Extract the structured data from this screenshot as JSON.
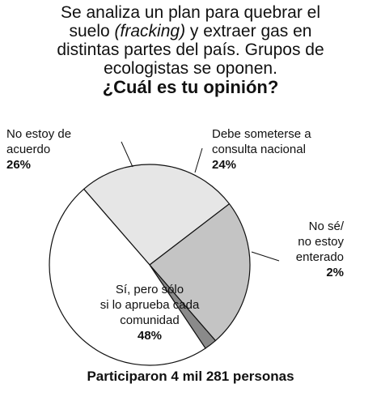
{
  "question": {
    "line1": "Se analiza un plan para quebrar el",
    "line2_before": "suelo ",
    "line2_italic": "(fracking)",
    "line2_after": " y extraer gas en",
    "line3": "distintas partes del país. Grupos de",
    "line4": "ecologistas se oponen.",
    "line5": "¿Cuál es tu opinión?"
  },
  "chart_data": {
    "type": "pie",
    "title": "¿Cuál es tu opinión?",
    "slices": [
      {
        "lines": [
          "No estoy de",
          "acuerdo"
        ],
        "pct_label": "26%",
        "value": 26,
        "color": "#e6e6e6"
      },
      {
        "lines": [
          "Debe someterse a",
          "consulta nacional"
        ],
        "pct_label": "24%",
        "value": 24,
        "color": "#c4c4c4"
      },
      {
        "lines": [
          "No sé/",
          "no estoy",
          "enterado"
        ],
        "pct_label": "2%",
        "value": 2,
        "color": "#8a8a8a"
      },
      {
        "lines": [
          "Sí, pero sólo",
          "si lo aprueba cada",
          "comunidad"
        ],
        "pct_label": "48%",
        "value": 48,
        "color": "#ffffff"
      }
    ]
  },
  "footer": "Participaron 4 mil 281 personas"
}
